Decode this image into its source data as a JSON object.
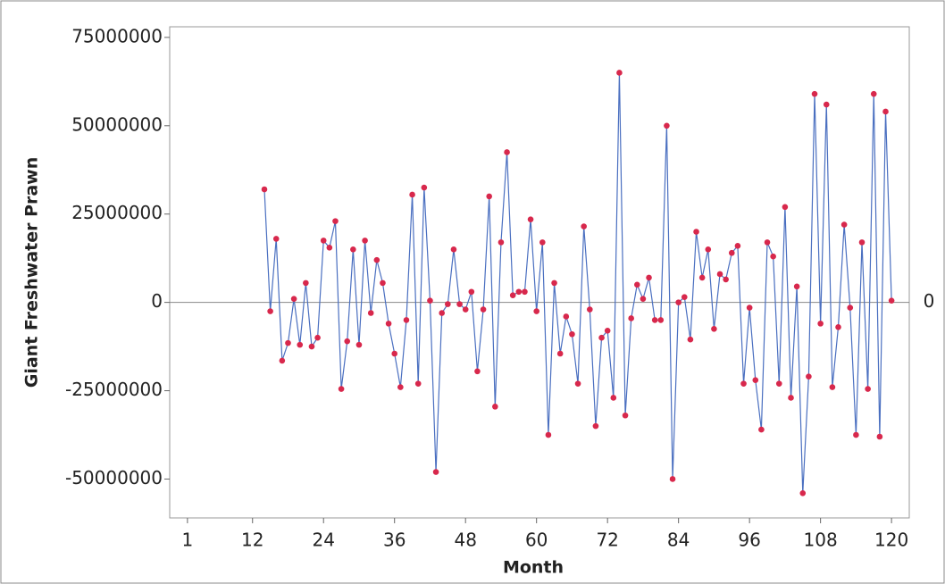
{
  "chart_data": {
    "type": "line",
    "xlabel": "Month",
    "ylabel": "Giant Freshwater Prawn",
    "x": [
      14,
      15,
      16,
      17,
      18,
      19,
      20,
      21,
      22,
      23,
      24,
      25,
      26,
      27,
      28,
      29,
      30,
      31,
      32,
      33,
      34,
      35,
      36,
      37,
      38,
      39,
      40,
      41,
      42,
      43,
      44,
      45,
      46,
      47,
      48,
      49,
      50,
      51,
      52,
      53,
      54,
      55,
      56,
      57,
      58,
      59,
      60,
      61,
      62,
      63,
      64,
      65,
      66,
      67,
      68,
      69,
      70,
      71,
      72,
      73,
      74,
      75,
      76,
      77,
      78,
      79,
      80,
      81,
      82,
      83,
      84,
      85,
      86,
      87,
      88,
      89,
      90,
      91,
      92,
      93,
      94,
      95,
      96,
      97,
      98,
      99,
      100,
      101,
      102,
      103,
      104,
      105,
      106,
      107,
      108,
      109,
      110,
      111,
      112,
      113,
      114,
      115,
      116,
      117,
      118,
      119,
      120
    ],
    "series": [
      {
        "color": "#4a6fc0",
        "marker_color": "#d8284c",
        "values": [
          32000000,
          -2500000,
          18000000,
          -16500000,
          -11500000,
          1000000,
          -12000000,
          5500000,
          -12500000,
          -10000000,
          17500000,
          15500000,
          23000000,
          -24500000,
          -11000000,
          15000000,
          -12000000,
          17500000,
          -3000000,
          12000000,
          5500000,
          -6000000,
          -14500000,
          -24000000,
          -5000000,
          30500000,
          -23000000,
          32500000,
          500000,
          -48000000,
          -3000000,
          -500000,
          15000000,
          -500000,
          -2000000,
          3000000,
          -19500000,
          -2000000,
          30000000,
          -29500000,
          17000000,
          42500000,
          2000000,
          3000000,
          3000000,
          23500000,
          -2500000,
          17000000,
          -37500000,
          5500000,
          -14500000,
          -4000000,
          -9000000,
          -23000000,
          21500000,
          -2000000,
          -35000000,
          -10000000,
          -8000000,
          -27000000,
          65000000,
          -32000000,
          -4500000,
          5000000,
          1000000,
          7000000,
          -5000000,
          -5000000,
          50000000,
          -50000000,
          0,
          1500000,
          -10500000,
          20000000,
          7000000,
          15000000,
          -7500000,
          8000000,
          6500000,
          14000000,
          16000000,
          -23000000,
          -1500000,
          -22000000,
          -36000000,
          17000000,
          13000000,
          -23000000,
          27000000,
          -27000000,
          4500000,
          -54000000,
          -21000000,
          59000000,
          -6000000,
          56000000,
          -24000000,
          -7000000,
          22000000,
          -1500000,
          -37500000,
          17000000,
          -24500000,
          59000000,
          -38000000,
          54000000,
          500000
        ]
      }
    ],
    "hline": 0,
    "xlim": [
      -2,
      123
    ],
    "ylim": [
      -61000000,
      78000000
    ],
    "xticks": [
      1,
      12,
      24,
      36,
      48,
      60,
      72,
      84,
      96,
      108,
      120
    ],
    "yticks": [
      -50000000,
      -25000000,
      0,
      25000000,
      50000000,
      75000000
    ]
  }
}
